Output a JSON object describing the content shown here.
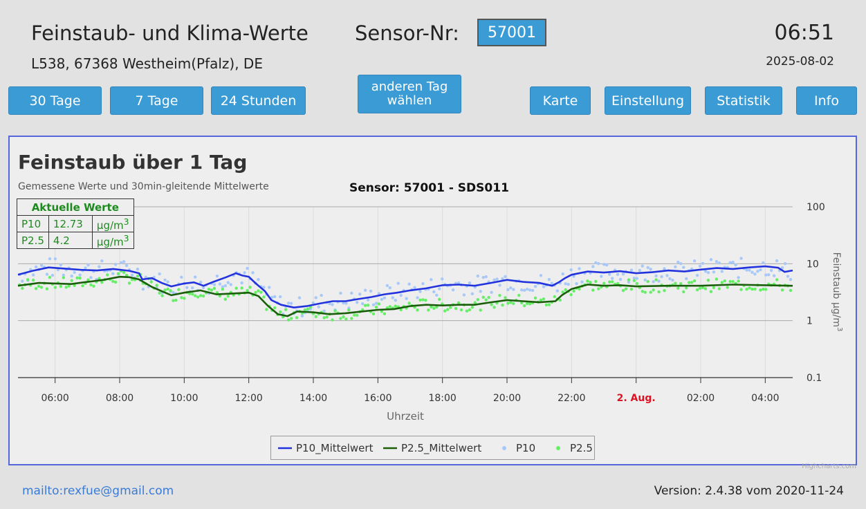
{
  "header": {
    "title": "Feinstaub- und Klima-Werte",
    "address": "L538, 67368 Westheim(Pfalz), DE",
    "sensor_label": "Sensor-Nr:",
    "sensor_number": "57001",
    "time": "06:51",
    "date": "2025-08-02"
  },
  "buttons": {
    "days30": "30 Tage",
    "days7": "7 Tage",
    "hours24": "24 Stunden",
    "other_day_line1": "anderen Tag",
    "other_day_line2": "wählen",
    "map": "Karte",
    "settings": "Einstellung",
    "statistics": "Statistik",
    "info": "Info"
  },
  "current_values": {
    "header": "Aktuelle Werte",
    "rows": [
      {
        "name": "P10",
        "value": "12.73",
        "unit": "µg/m",
        "sup": "3"
      },
      {
        "name": "P2.5",
        "value": "4.2",
        "unit": "µg/m",
        "sup": "3"
      }
    ]
  },
  "footer": {
    "mail": "mailto:rexfue@gmail.com",
    "version": "Version: 2.4.38 vom 2020-11-24",
    "watermark": "Highcharts.com"
  },
  "colors": {
    "p10_line": "#2233dd",
    "p25_line": "#1a5e0a",
    "p10_points": "#a8c8f8",
    "p25_points": "#66ee66",
    "button": "#3a9bd5",
    "day_label": "#dd1122"
  },
  "chart_data": {
    "type": "line",
    "title": "Feinstaub über 1 Tag",
    "subtitle": "Gemessene Werte und 30min-gleitende Mittelwerte",
    "sensor_title": "Sensor: 57001 - SDS011",
    "xlabel": "Uhrzeit",
    "ylabel": "Feinstaub µg/m",
    "ylabel_sup": "3",
    "y_scale": "log",
    "ylim": [
      0.1,
      100
    ],
    "y_ticks": [
      "100",
      "10",
      "1",
      "0.1"
    ],
    "x_range_hours": [
      4.85,
      28.85
    ],
    "x_ticks": [
      {
        "h": 6,
        "label": "06:00"
      },
      {
        "h": 8,
        "label": "08:00"
      },
      {
        "h": 10,
        "label": "10:00"
      },
      {
        "h": 12,
        "label": "12:00"
      },
      {
        "h": 14,
        "label": "14:00"
      },
      {
        "h": 16,
        "label": "16:00"
      },
      {
        "h": 18,
        "label": "18:00"
      },
      {
        "h": 20,
        "label": "20:00"
      },
      {
        "h": 22,
        "label": "22:00"
      },
      {
        "h": 24,
        "label": "2. Aug.",
        "highlight": true
      },
      {
        "h": 26,
        "label": "02:00"
      },
      {
        "h": 28,
        "label": "04:00"
      }
    ],
    "series": [
      {
        "name": "P10_Mittelwert",
        "kind": "line",
        "x": [
          4.85,
          5.3,
          5.8,
          6.3,
          6.8,
          7.3,
          7.8,
          8.3,
          8.6,
          8.7,
          9.0,
          9.3,
          9.6,
          10.0,
          10.3,
          10.6,
          10.9,
          11.3,
          11.6,
          11.8,
          12.0,
          12.2,
          12.5,
          12.7,
          13.0,
          13.4,
          13.8,
          14.2,
          14.6,
          15.0,
          15.4,
          15.8,
          16.2,
          16.6,
          17.0,
          17.5,
          18.0,
          18.5,
          19.0,
          19.5,
          20.0,
          20.5,
          21.0,
          21.4,
          21.6,
          21.8,
          22.0,
          22.5,
          23.0,
          23.5,
          24.0,
          24.5,
          25.0,
          25.5,
          26.0,
          26.5,
          27.0,
          27.5,
          28.0,
          28.4,
          28.6,
          28.85
        ],
        "values": [
          6.4,
          7.5,
          8.6,
          8.2,
          7.8,
          7.6,
          8.1,
          7.5,
          6.8,
          5.3,
          5.6,
          4.6,
          4.0,
          4.5,
          4.7,
          4.1,
          4.8,
          5.8,
          6.8,
          6.2,
          5.9,
          4.6,
          3.3,
          2.3,
          1.9,
          1.7,
          1.8,
          2.0,
          2.2,
          2.2,
          2.4,
          2.6,
          2.9,
          3.1,
          3.4,
          3.7,
          4.2,
          4.3,
          4.1,
          4.6,
          5.2,
          4.8,
          4.6,
          4.1,
          4.7,
          5.6,
          6.4,
          7.3,
          7.0,
          7.4,
          6.8,
          7.1,
          7.6,
          7.3,
          7.9,
          8.4,
          8.1,
          8.6,
          9.0,
          8.5,
          7.2,
          7.6
        ]
      },
      {
        "name": "P2.5_Mittelwert",
        "kind": "line",
        "x": [
          4.85,
          5.5,
          6.0,
          6.5,
          7.0,
          7.5,
          8.0,
          8.3,
          8.6,
          9.0,
          9.3,
          9.6,
          10.0,
          10.5,
          11.0,
          11.5,
          12.0,
          12.3,
          12.6,
          12.9,
          13.2,
          13.5,
          14.0,
          14.5,
          15.0,
          15.5,
          16.0,
          16.5,
          17.0,
          17.5,
          18.0,
          18.5,
          19.0,
          19.5,
          20.0,
          20.5,
          21.0,
          21.5,
          21.7,
          22.0,
          22.5,
          23.0,
          23.5,
          24.0,
          25.0,
          26.0,
          27.0,
          28.0,
          28.85
        ],
        "values": [
          4.1,
          4.6,
          4.5,
          4.4,
          4.8,
          5.2,
          5.9,
          5.8,
          5.3,
          3.9,
          3.3,
          2.8,
          3.1,
          3.4,
          2.9,
          3.0,
          3.1,
          2.7,
          1.8,
          1.3,
          1.2,
          1.45,
          1.4,
          1.3,
          1.35,
          1.45,
          1.55,
          1.6,
          1.8,
          1.9,
          1.85,
          1.9,
          1.9,
          2.1,
          2.3,
          2.2,
          2.1,
          2.2,
          2.8,
          3.6,
          4.3,
          4.1,
          4.2,
          4.0,
          4.1,
          4.1,
          4.3,
          4.2,
          4.1
        ]
      },
      {
        "name": "P10",
        "kind": "points"
      },
      {
        "name": "P2.5",
        "kind": "points"
      }
    ]
  }
}
